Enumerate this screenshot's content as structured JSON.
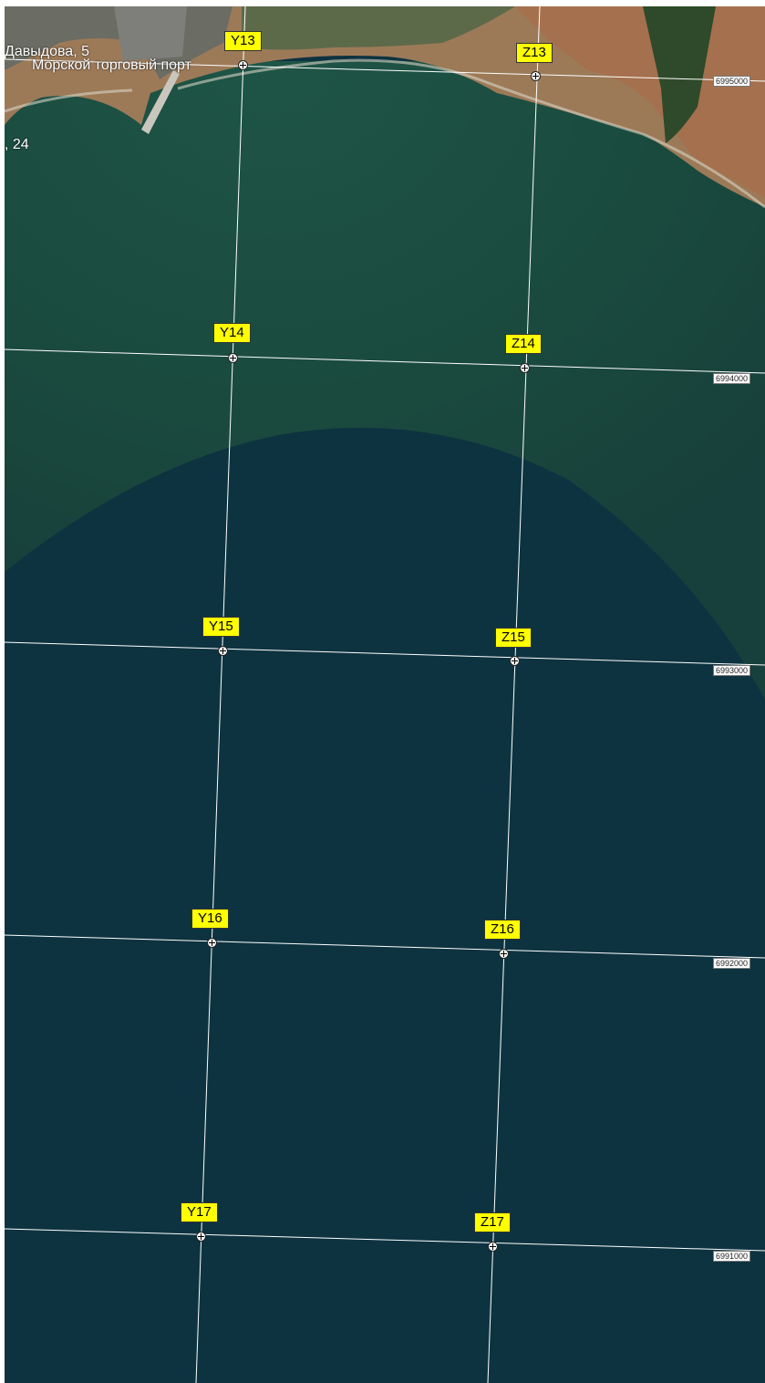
{
  "map": {
    "place_labels": {
      "street": "Давыдова, 5",
      "port": "Морской торговый порт",
      "number": ", 24"
    },
    "grid_points": [
      {
        "id": "Y13"
      },
      {
        "id": "Z13"
      },
      {
        "id": "Y14"
      },
      {
        "id": "Z14"
      },
      {
        "id": "Y15"
      },
      {
        "id": "Z15"
      },
      {
        "id": "Y16"
      },
      {
        "id": "Z16"
      },
      {
        "id": "Y17"
      },
      {
        "id": "Z17"
      }
    ],
    "northing_ticks": [
      "6995000",
      "6994000",
      "6993000",
      "6992000",
      "6991000"
    ],
    "colors": {
      "label_bg": "#ffff00",
      "grid_line": "#ffffff",
      "deep_water": "#0d3340",
      "shallow_water": "#1c4a3f",
      "land": "#b08560"
    }
  }
}
